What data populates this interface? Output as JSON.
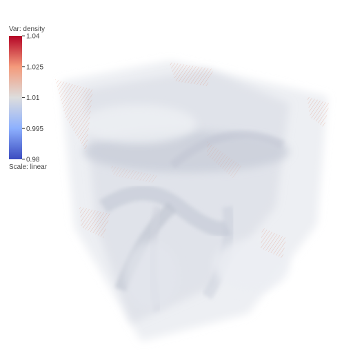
{
  "chart_data": {
    "type": "volume",
    "variable_label": "Var: density",
    "scale_label": "Scale: linear",
    "colorscale": [
      "#3b4cc0",
      "#8db0fe",
      "#dddddd",
      "#f49a7b",
      "#b40426"
    ],
    "cmin": 0.98,
    "cmax": 1.04,
    "colorbar_ticks": [
      {
        "value": 1.04,
        "label": "1.04"
      },
      {
        "value": 1.025,
        "label": "1.025"
      },
      {
        "value": 1.01,
        "label": "1.01"
      },
      {
        "value": 0.995,
        "label": "0.995"
      },
      {
        "value": 0.98,
        "label": "0.98"
      }
    ]
  }
}
